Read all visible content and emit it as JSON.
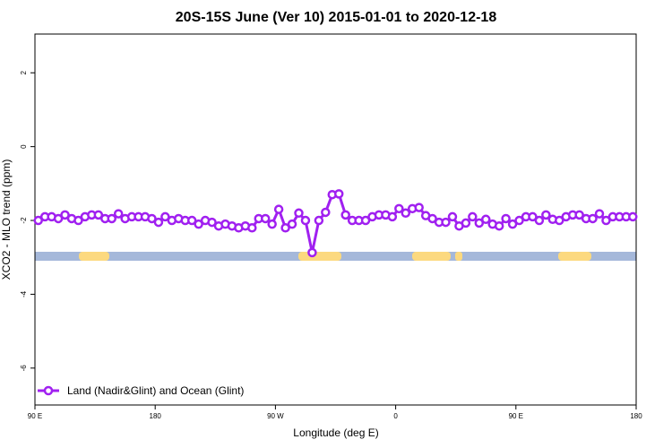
{
  "chart_data": {
    "type": "line",
    "title": "20S-15S June (Ver 10)   2015-01-01 to 2020-12-18",
    "x_label": "Longitude (deg E)",
    "y_label": "XCO2 - MLO trend (ppm)",
    "x": [
      92.5,
      97.5,
      102.5,
      107.5,
      112.5,
      117.5,
      122.5,
      127.5,
      132.5,
      137.5,
      142.5,
      147.5,
      152.5,
      157.5,
      162.5,
      167.5,
      172.5,
      177.5,
      182.5,
      187.5,
      192.5,
      197.5,
      202.5,
      207.5,
      212.5,
      217.5,
      222.5,
      227.5,
      232.5,
      237.5,
      242.5,
      247.5,
      252.5,
      257.5,
      262.5,
      267.5,
      272.5,
      277.5,
      282.5,
      287.5,
      292.5,
      297.5,
      302.5,
      307.5,
      312.5,
      317.5,
      322.5,
      327.5,
      332.5,
      337.5,
      342.5,
      347.5,
      352.5,
      357.5,
      362.5,
      367.5,
      372.5,
      377.5,
      382.5,
      387.5,
      392.5,
      397.5,
      402.5,
      407.5,
      412.5,
      417.5,
      422.5,
      427.5,
      432.5,
      437.5,
      442.5,
      447.5,
      452.5,
      457.5,
      462.5,
      467.5,
      472.5,
      477.5,
      482.5,
      487.5,
      492.5,
      497.5,
      502.5,
      507.5,
      512.5,
      517.5,
      522.5,
      527.5,
      532.5,
      537.5
    ],
    "series": [
      {
        "name": "Land (Nadir&Glint) and Ocean (Glint)",
        "color": "#a020f0",
        "values": [
          -2.0,
          -1.9,
          -1.9,
          -1.95,
          -1.85,
          -1.95,
          -2.0,
          -1.9,
          -1.85,
          -1.85,
          -1.95,
          -1.95,
          -1.82,
          -1.95,
          -1.9,
          -1.9,
          -1.9,
          -1.95,
          -2.05,
          -1.9,
          -2.0,
          -1.95,
          -2.0,
          -2.0,
          -2.1,
          -2.0,
          -2.05,
          -2.15,
          -2.1,
          -2.15,
          -2.2,
          -2.15,
          -2.2,
          -1.95,
          -1.95,
          -2.1,
          -1.7,
          -2.2,
          -2.1,
          -1.8,
          -2.0,
          -2.87,
          -2.0,
          -1.78,
          -1.3,
          -1.28,
          -1.85,
          -2.0,
          -2.0,
          -2.0,
          -1.9,
          -1.85,
          -1.85,
          -1.9,
          -1.68,
          -1.8,
          -1.68,
          -1.65,
          -1.87,
          -1.95,
          -2.05,
          -2.05,
          -1.9,
          -2.15,
          -2.07,
          -1.9,
          -2.07,
          -1.97,
          -2.1,
          -2.15,
          -1.95,
          -2.1,
          -2.0,
          -1.9,
          -1.9,
          -2.0,
          -1.85,
          -1.97,
          -2.0,
          -1.9,
          -1.85,
          -1.85,
          -1.95,
          -1.95,
          -1.82,
          -2.0,
          -1.9,
          -1.9,
          -1.9,
          -1.9
        ]
      }
    ],
    "xlim": [
      90,
      540
    ],
    "xticks": [
      {
        "value": 90,
        "label": "90 E"
      },
      180,
      {
        "value": 270,
        "label": "90 W"
      },
      {
        "value": 360,
        "label": "0"
      },
      {
        "value": 450,
        "label": "90 E"
      },
      {
        "value": 540,
        "label": "180"
      }
    ],
    "ylim": [
      -7,
      3.05
    ],
    "yticks": [
      2,
      0,
      -2,
      -4,
      -6
    ],
    "legend": "bottom-left"
  }
}
